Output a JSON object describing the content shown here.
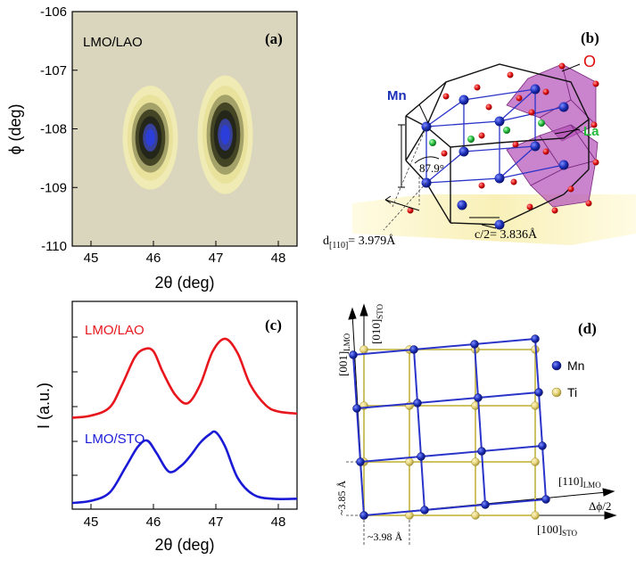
{
  "figure": {
    "panel_a": {
      "label": "(a)",
      "sample": "LMO/LAO",
      "xlabel": "2θ (deg)",
      "ylabel": "ϕ (deg)"
    },
    "panel_b": {
      "label": "(b)",
      "atom_mn": "Mn",
      "atom_o": "O",
      "atom_la": "La",
      "angle": "87.9°",
      "d110_prefix": "d",
      "d110_sub": "[110]",
      "d110_value": "= 3.979Å",
      "c_half": "c/2= 3.836Å"
    },
    "panel_c": {
      "label": "(c)",
      "xlabel": "2θ (deg)",
      "ylabel": "I (a.u.)",
      "series_lao_name": "LMO/LAO",
      "series_sto_name": "LMO/STO"
    },
    "panel_d": {
      "label": "(d)",
      "axis_001": "[001]",
      "axis_001_sub": "LMO",
      "axis_010": "[010]",
      "axis_010_sub": "STO",
      "axis_110": "[110]",
      "axis_110_sub": "LMO",
      "axis_100": "[100]",
      "axis_100_sub": "STO",
      "dphi": "Δϕ/2",
      "spacing_v": "~3.85 Å",
      "spacing_h": "~3.98 Å",
      "legend_mn": "Mn",
      "legend_ti": "Ti"
    }
  },
  "chart_data": [
    {
      "type": "heatmap",
      "panel": "a",
      "title": "LMO/LAO",
      "xlabel": "2θ (deg)",
      "ylabel": "ϕ (deg)",
      "xlim": [
        44.7,
        48.3
      ],
      "ylim": [
        -110,
        -106
      ],
      "xticks": [
        45,
        46,
        47,
        48
      ],
      "yticks": [
        -106,
        -107,
        -108,
        -109,
        -110
      ],
      "peaks": [
        {
          "x": 45.95,
          "y": -108.15,
          "sx": 0.35,
          "sy": 0.7
        },
        {
          "x": 47.15,
          "y": -108.1,
          "sx": 0.35,
          "sy": 0.8
        }
      ]
    },
    {
      "type": "line",
      "panel": "c",
      "xlabel": "2θ (deg)",
      "ylabel": "I (a.u.)",
      "xlim": [
        44.7,
        48.3
      ],
      "xticks": [
        45,
        46,
        47,
        48
      ],
      "ylim": [
        0,
        1
      ],
      "series": [
        {
          "name": "LMO/LAO",
          "color": "#e8161d",
          "x": [
            44.7,
            45.0,
            45.3,
            45.5,
            45.7,
            45.85,
            46.0,
            46.15,
            46.35,
            46.55,
            46.75,
            46.95,
            47.15,
            47.35,
            47.55,
            47.8,
            48.0,
            48.3
          ],
          "y": [
            0.44,
            0.45,
            0.49,
            0.6,
            0.73,
            0.77,
            0.76,
            0.66,
            0.55,
            0.51,
            0.6,
            0.76,
            0.82,
            0.75,
            0.6,
            0.5,
            0.47,
            0.46
          ]
        },
        {
          "name": "LMO/STO",
          "color": "#1a1ad6",
          "x": [
            44.7,
            45.0,
            45.3,
            45.55,
            45.75,
            45.9,
            46.05,
            46.25,
            46.45,
            46.6,
            46.75,
            46.9,
            47.0,
            47.15,
            47.35,
            47.6,
            47.9,
            48.3
          ],
          "y": [
            0.03,
            0.04,
            0.08,
            0.2,
            0.3,
            0.33,
            0.27,
            0.18,
            0.21,
            0.26,
            0.32,
            0.36,
            0.37,
            0.3,
            0.15,
            0.07,
            0.05,
            0.05
          ]
        }
      ]
    }
  ],
  "colors": {
    "lao_red": "#e8161d",
    "sto_blue": "#1a1ad6",
    "mn_atom": "#1c2fb8",
    "ti_atom": "#e3d27a",
    "o_atom": "#e01010",
    "la_atom": "#22b83a",
    "octahedron": "#b44fb8",
    "lattice_blue": "#2b34c9",
    "lattice_yellow": "#cfc262"
  }
}
